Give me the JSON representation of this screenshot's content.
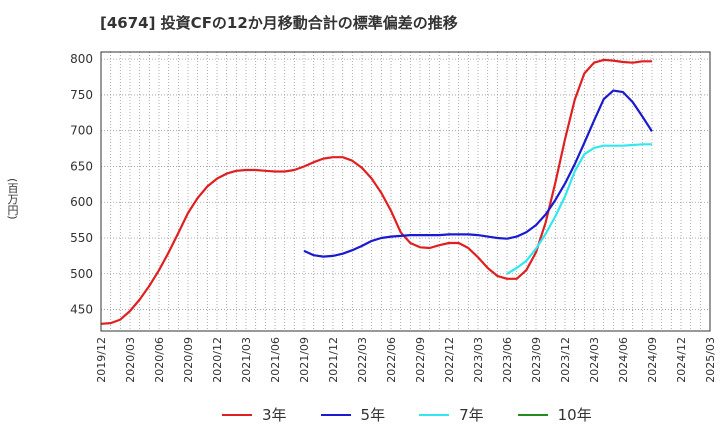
{
  "title": "[4674]  投資CFの12か月移動合計の標準偏差の推移",
  "unit_label": "(百万円)",
  "legend": [
    {
      "label": "3年",
      "color": "#e02020"
    },
    {
      "label": "5年",
      "color": "#1a1ad0"
    },
    {
      "label": "7年",
      "color": "#33e6f0"
    },
    {
      "label": "10年",
      "color": "#228b22"
    }
  ],
  "chart_data": {
    "type": "line",
    "ylim": [
      420,
      810
    ],
    "yticks": [
      450,
      500,
      550,
      600,
      650,
      700,
      750,
      800
    ],
    "xticks": [
      "2019/12",
      "2020/03",
      "2020/06",
      "2020/09",
      "2020/12",
      "2021/03",
      "2021/06",
      "2021/09",
      "2021/12",
      "2022/03",
      "2022/06",
      "2022/09",
      "2022/12",
      "2023/03",
      "2023/06",
      "2023/09",
      "2023/12",
      "2024/03",
      "2024/06",
      "2024/09",
      "2024/12",
      "2025/03"
    ],
    "grid": true,
    "series": [
      {
        "name": "3年",
        "color": "#e02020",
        "x": [
          0,
          1,
          2,
          3,
          4,
          5,
          6,
          7,
          8,
          9,
          10,
          11,
          12,
          13,
          14,
          15,
          16,
          17,
          18,
          19,
          20,
          21,
          22,
          23,
          24,
          25,
          26,
          27,
          28,
          29,
          30,
          31,
          32,
          33,
          34,
          35,
          36,
          37,
          38,
          39,
          40,
          41,
          42,
          43,
          44,
          45,
          46,
          47,
          48,
          49,
          50,
          51,
          52,
          53,
          54,
          55,
          56,
          57
        ],
        "values": [
          430,
          431,
          436,
          448,
          464,
          483,
          505,
          530,
          557,
          585,
          606,
          622,
          633,
          640,
          644,
          645,
          645,
          644,
          643,
          643,
          645,
          650,
          656,
          661,
          663,
          663,
          658,
          648,
          633,
          613,
          588,
          558,
          543,
          537,
          536,
          540,
          543,
          543,
          536,
          523,
          508,
          497,
          493,
          493,
          505,
          530,
          572,
          627,
          688,
          743,
          780,
          795,
          799,
          798,
          796,
          795,
          797,
          797
        ]
      },
      {
        "name": "5年",
        "color": "#1a1ad0",
        "x": [
          21,
          22,
          23,
          24,
          25,
          26,
          27,
          28,
          29,
          30,
          31,
          32,
          33,
          34,
          35,
          36,
          37,
          38,
          39,
          40,
          41,
          42,
          43,
          44,
          45,
          46,
          47,
          48,
          49,
          50,
          51,
          52,
          53,
          54,
          55,
          56,
          57
        ],
        "values": [
          532,
          526,
          524,
          525,
          528,
          533,
          539,
          546,
          550,
          552,
          553,
          554,
          554,
          554,
          554,
          555,
          555,
          555,
          554,
          552,
          550,
          549,
          552,
          558,
          568,
          583,
          603,
          626,
          653,
          683,
          714,
          744,
          756,
          754,
          740,
          720,
          699
        ]
      },
      {
        "name": "7年",
        "color": "#33e6f0",
        "x": [
          42,
          43,
          44,
          45,
          46,
          47,
          48,
          49,
          50,
          51,
          52,
          53,
          54,
          55,
          56,
          57
        ],
        "values": [
          500,
          508,
          518,
          535,
          556,
          580,
          608,
          643,
          667,
          676,
          679,
          679,
          679,
          680,
          681,
          681
        ]
      },
      {
        "name": "10年",
        "color": "#228b22",
        "x": [],
        "values": []
      }
    ]
  }
}
